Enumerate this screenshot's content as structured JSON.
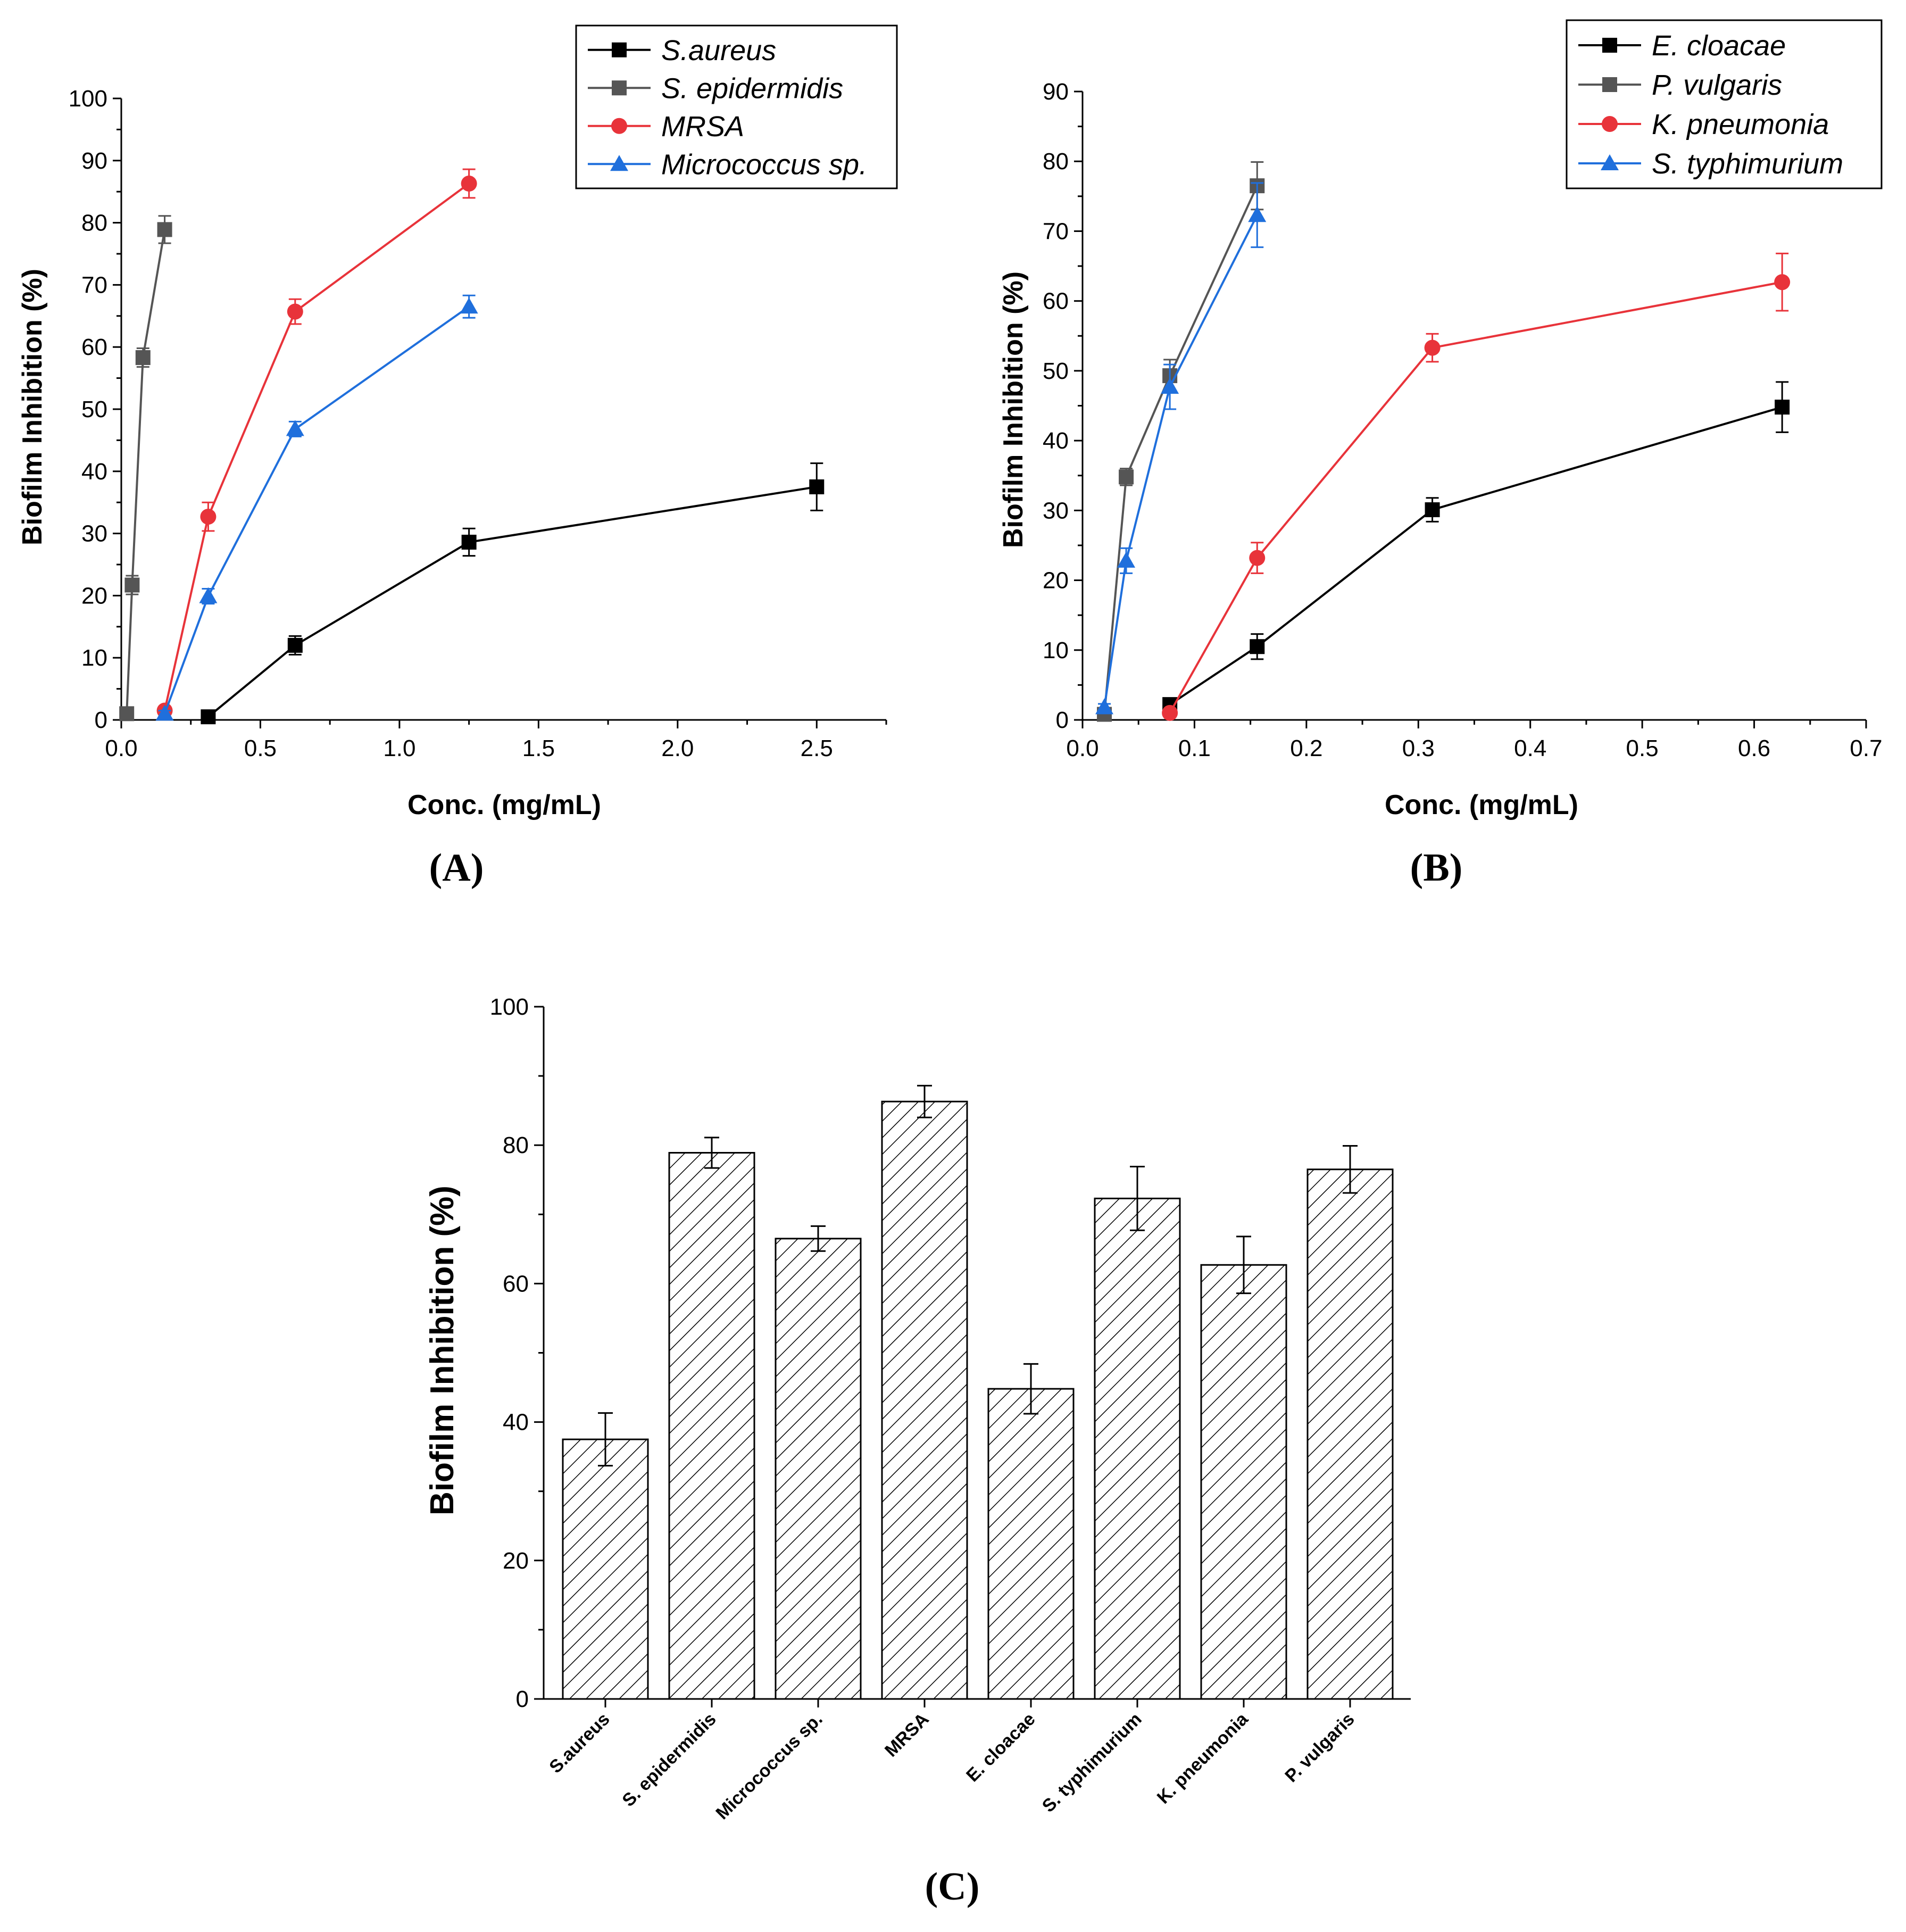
{
  "colors": {
    "black": "#000000",
    "gray": "#555555",
    "red": "#e8333a",
    "blue": "#1f6fdc"
  },
  "chart_data": [
    {
      "type": "line",
      "panel": "A",
      "panel_label": "(A)",
      "xlabel": "Conc. (mg/mL)",
      "ylabel": "Biofilm Inhibition (%)",
      "xlim": [
        0,
        2.75
      ],
      "ylim": [
        0,
        100
      ],
      "xticks": [
        0.0,
        0.5,
        1.0,
        1.5,
        2.0,
        2.5
      ],
      "xtick_labels": [
        "0.0",
        "0.5",
        "1.0",
        "1.5",
        "2.0",
        "2.5"
      ],
      "yticks": [
        0,
        10,
        20,
        30,
        40,
        50,
        60,
        70,
        80,
        90,
        100
      ],
      "ytick_labels": [
        "0",
        "10",
        "20",
        "30",
        "40",
        "50",
        "60",
        "70",
        "80",
        "90",
        "100"
      ],
      "legend_position": "top-right",
      "series": [
        {
          "name": "S.aureus",
          "color": "#000000",
          "marker": "square",
          "x": [
            0.3125,
            0.625,
            1.25,
            2.5
          ],
          "y": [
            0.5,
            12.0,
            28.6,
            37.5
          ],
          "err": [
            0.5,
            1.5,
            2.2,
            3.8
          ]
        },
        {
          "name": "S. epidermidis",
          "color": "#555555",
          "marker": "square",
          "x": [
            0.0195,
            0.039,
            0.078,
            0.156
          ],
          "y": [
            1.0,
            21.7,
            58.3,
            78.9
          ],
          "err": [
            0.5,
            1.5,
            1.5,
            2.2
          ]
        },
        {
          "name": "MRSA",
          "color": "#e8333a",
          "marker": "circle",
          "x": [
            0.156,
            0.3125,
            0.625,
            1.25
          ],
          "y": [
            1.5,
            32.7,
            65.7,
            86.3
          ],
          "err": [
            0.5,
            2.3,
            2.0,
            2.3
          ]
        },
        {
          "name": "Micrococcus sp.",
          "color": "#1f6fdc",
          "marker": "triangle",
          "x": [
            0.156,
            0.3125,
            0.625,
            1.25
          ],
          "y": [
            1.0,
            19.9,
            46.8,
            66.5
          ],
          "err": [
            0.5,
            1.2,
            1.2,
            1.8
          ]
        }
      ]
    },
    {
      "type": "line",
      "panel": "B",
      "panel_label": "(B)",
      "xlabel": "Conc. (mg/mL)",
      "ylabel": "Biofilm Inhibition (%)",
      "xlim": [
        0,
        0.7
      ],
      "ylim": [
        0,
        90
      ],
      "xticks": [
        0.0,
        0.1,
        0.2,
        0.3,
        0.4,
        0.5,
        0.6,
        0.7
      ],
      "xtick_labels": [
        "0.0",
        "0.1",
        "0.2",
        "0.3",
        "0.4",
        "0.5",
        "0.6",
        "0.7"
      ],
      "yticks": [
        0,
        10,
        20,
        30,
        40,
        50,
        60,
        70,
        80,
        90
      ],
      "ytick_labels": [
        "0",
        "10",
        "20",
        "30",
        "40",
        "50",
        "60",
        "70",
        "80",
        "90"
      ],
      "legend_position": "top-right",
      "series": [
        {
          "name": "E. cloacae",
          "color": "#000000",
          "marker": "square",
          "x": [
            0.078,
            0.156,
            0.3125,
            0.625
          ],
          "y": [
            2.2,
            10.5,
            30.1,
            44.8
          ],
          "err": [
            0.5,
            1.8,
            1.7,
            3.6
          ]
        },
        {
          "name": "P. vulgaris",
          "color": "#555555",
          "marker": "square",
          "x": [
            0.0195,
            0.039,
            0.078,
            0.156
          ],
          "y": [
            0.8,
            34.8,
            49.3,
            76.5
          ],
          "err": [
            0.5,
            1.2,
            2.3,
            3.4
          ]
        },
        {
          "name": "K. pneumonia",
          "color": "#e8333a",
          "marker": "circle",
          "x": [
            0.078,
            0.156,
            0.3125,
            0.625
          ],
          "y": [
            1.0,
            23.2,
            53.3,
            62.7
          ],
          "err": [
            0.4,
            2.2,
            2.0,
            4.1
          ]
        },
        {
          "name": "S. typhimurium",
          "color": "#1f6fdc",
          "marker": "triangle",
          "x": [
            0.0195,
            0.039,
            0.078,
            0.156
          ],
          "y": [
            1.8,
            22.8,
            47.7,
            72.3
          ],
          "err": [
            0.5,
            1.8,
            3.2,
            4.6
          ]
        }
      ]
    },
    {
      "type": "bar",
      "panel": "C",
      "panel_label": "(C)",
      "xlabel": "",
      "ylabel": "Biofilm Inhibition (%)",
      "ylim": [
        0,
        100
      ],
      "yticks": [
        0,
        20,
        40,
        60,
        80,
        100
      ],
      "ytick_labels": [
        "0",
        "20",
        "40",
        "60",
        "80",
        "100"
      ],
      "fill_pattern": "diagonal hatch",
      "categories": [
        "S.aureus",
        "S. epidermidis",
        "Micrococcus sp.",
        "MRSA",
        "E. cloacae",
        "S. typhimurium",
        "K. pneumonia",
        "P. vulgaris"
      ],
      "values": [
        37.5,
        78.9,
        66.5,
        86.3,
        44.8,
        72.3,
        62.7,
        76.5
      ],
      "errors": [
        3.8,
        2.2,
        1.8,
        2.3,
        3.6,
        4.6,
        4.1,
        3.4
      ]
    }
  ]
}
